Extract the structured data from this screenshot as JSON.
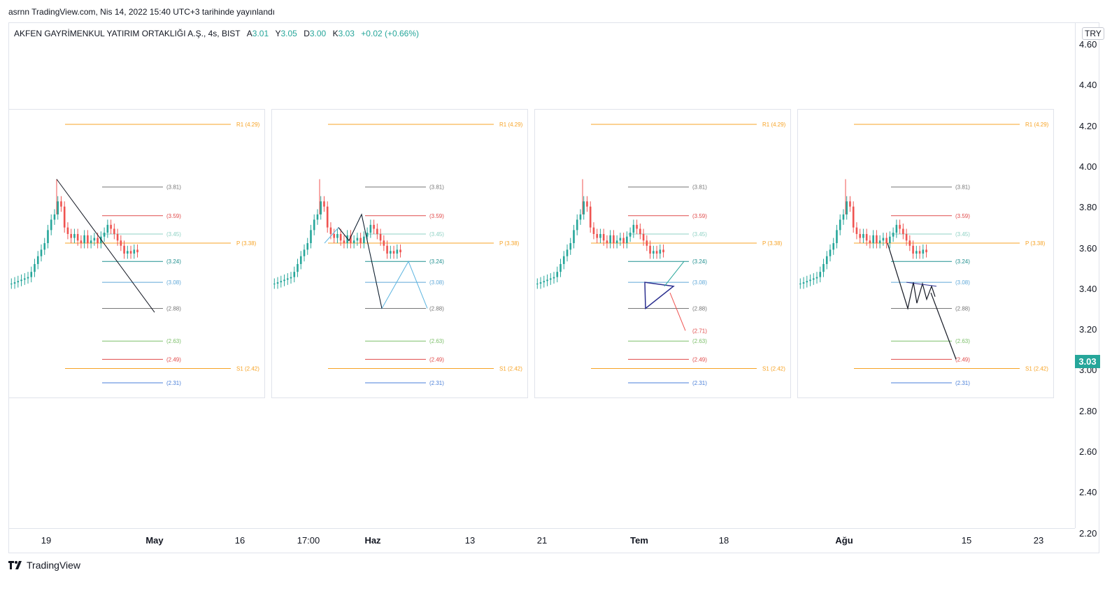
{
  "published": "asrnn TradingView.com, Nis 14, 2022 15:40 UTC+3 tarihinde yayınlandı",
  "legend": {
    "symbol": "AKFEN GAYRİMENKUL YATIRIM ORTAKLIĞI A.Ş., 4s, BIST",
    "o_label": "A",
    "o_value": "3.01",
    "h_label": "Y",
    "h_value": "3.05",
    "l_label": "D",
    "l_value": "3.00",
    "c_label": "K",
    "c_value": "3.03",
    "change": "+0.02 (+0.66%)"
  },
  "currency": "TRY",
  "last_price": "3.03",
  "price_ticks": [
    "4.60",
    "4.40",
    "4.20",
    "4.00",
    "3.80",
    "3.60",
    "3.40",
    "3.20",
    "3.00",
    "2.80",
    "2.60",
    "2.40",
    "2.20"
  ],
  "time_ticks": [
    {
      "label": "19",
      "bold": false
    },
    {
      "label": "May",
      "bold": true
    },
    {
      "label": "16",
      "bold": false
    },
    {
      "label": "17:00",
      "bold": false
    },
    {
      "label": "Haz",
      "bold": true
    },
    {
      "label": "13",
      "bold": false
    },
    {
      "label": "21",
      "bold": false
    },
    {
      "label": "Tem",
      "bold": true
    },
    {
      "label": "18",
      "bold": false
    },
    {
      "label": "Ağu",
      "bold": true
    },
    {
      "label": "15",
      "bold": false
    },
    {
      "label": "23",
      "bold": false
    }
  ],
  "levels": [
    {
      "label": "R1 (4.29)",
      "value": 4.29,
      "color": "#f7a325",
      "type": "long"
    },
    {
      "label": "(3.81)",
      "value": 3.81,
      "color": "#777777",
      "type": "short"
    },
    {
      "label": "(3.59)",
      "value": 3.59,
      "color": "#e04a4a",
      "type": "short"
    },
    {
      "label": "(3.45)",
      "value": 3.45,
      "color": "#8fd1c4",
      "type": "short"
    },
    {
      "label": "P (3.38)",
      "value": 3.38,
      "color": "#f7a325",
      "type": "long"
    },
    {
      "label": "(3.24)",
      "value": 3.24,
      "color": "#1f8f8f",
      "type": "short"
    },
    {
      "label": "(3.08)",
      "value": 3.08,
      "color": "#5fa8d8",
      "type": "short"
    },
    {
      "label": "(2.88)",
      "value": 2.88,
      "color": "#777777",
      "type": "short"
    },
    {
      "label": "(2.63)",
      "value": 2.63,
      "color": "#7cbf6a",
      "type": "short"
    },
    {
      "label": "(2.49)",
      "value": 2.49,
      "color": "#e04a4a",
      "type": "short"
    },
    {
      "label": "S1 (2.42)",
      "value": 2.42,
      "color": "#f7a325",
      "type": "long"
    },
    {
      "label": "(2.31)",
      "value": 2.31,
      "color": "#4a7fd8",
      "type": "short"
    }
  ],
  "panel3_extra_label": "(2.71)",
  "colors": {
    "up": "#26a69a",
    "down": "#ef5350",
    "accent": "#26a69a"
  },
  "footer": {
    "brand": "TradingView"
  },
  "icons": {
    "logo": "tradingview-logo-icon"
  }
}
